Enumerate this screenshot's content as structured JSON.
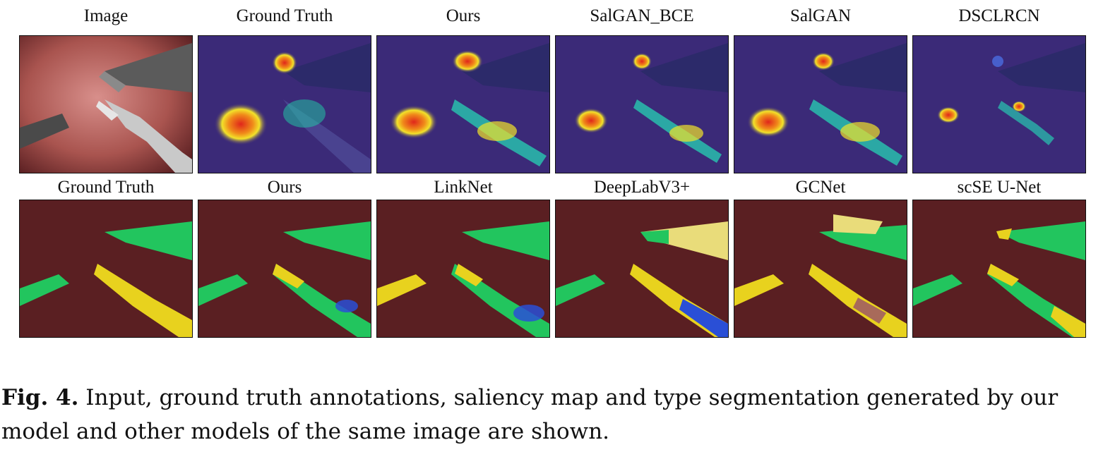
{
  "figure": {
    "row1": {
      "labels": [
        "Image",
        "Ground Truth",
        "Ours",
        "SalGAN_BCE",
        "SalGAN",
        "DSCLRCN"
      ],
      "kinds": [
        "photo",
        "saliency",
        "saliency",
        "saliency",
        "saliency",
        "saliency"
      ]
    },
    "row2": {
      "labels": [
        "Ground Truth",
        "Ours",
        "LinkNet",
        "DeepLabV3+",
        "GCNet",
        "scSE U-Net"
      ],
      "kinds": [
        "seg",
        "seg",
        "seg",
        "seg",
        "seg",
        "seg"
      ]
    },
    "colors": {
      "tissue_dark": "#5a1f22",
      "tissue_light": "#c97c78",
      "saliency_bg": "#3b2a78",
      "instrument_green": "#22c55e",
      "instrument_yellow": "#e8d21e",
      "instrument_blue": "#2a4fd6",
      "hot_red": "#e0261b",
      "hot_yellow": "#f2e22a"
    }
  },
  "caption": {
    "label": "Fig. 4.",
    "text": "Input, ground truth annotations, saliency map and type segmentation generated by our model and other models of the same image are shown."
  }
}
